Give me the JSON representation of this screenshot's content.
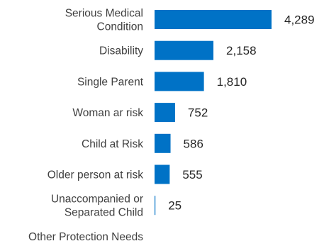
{
  "chart_data": {
    "type": "bar",
    "orientation": "horizontal",
    "categories": [
      [
        "Serious Medical",
        "Condition"
      ],
      [
        "Disability"
      ],
      [
        "Single Parent"
      ],
      [
        "Woman ar risk"
      ],
      [
        "Child at Risk"
      ],
      [
        "Older person at risk"
      ],
      [
        "Unaccompanied or",
        "Separated Child"
      ],
      [
        "Other Protection Needs"
      ]
    ],
    "values": [
      4289,
      2158,
      1810,
      752,
      586,
      555,
      25,
      0
    ],
    "value_labels": [
      "4,289",
      "2,158",
      "1,810",
      "752",
      "586",
      "555",
      "25",
      ""
    ],
    "bar_color": "#0072c6",
    "title": "",
    "xlabel": "",
    "ylabel": "",
    "xlim": [
      0,
      4289
    ],
    "grid": false,
    "legend": "none"
  }
}
